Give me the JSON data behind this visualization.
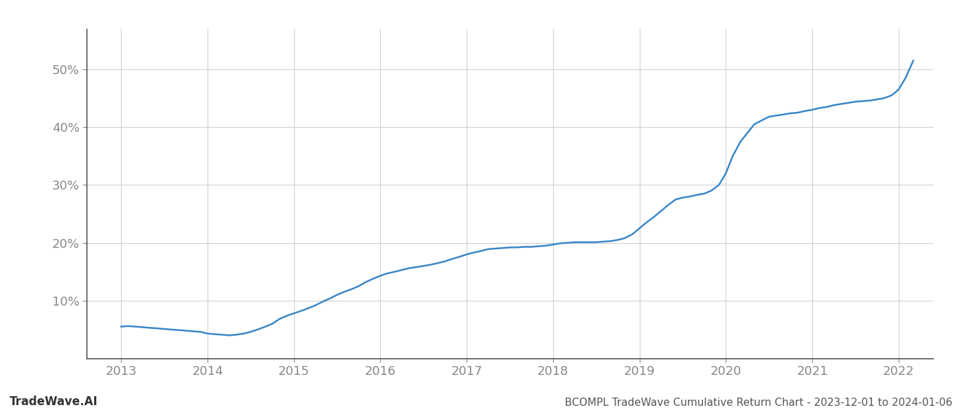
{
  "title": "BCOMPL TradeWave Cumulative Return Chart - 2023-12-01 to 2024-01-06",
  "watermark": "TradeWave.AI",
  "line_color": "#3a86c8",
  "background_color": "#ffffff",
  "grid_color": "#d0d0d0",
  "x_values": [
    2013.0,
    2013.08,
    2013.17,
    2013.25,
    2013.33,
    2013.42,
    2013.5,
    2013.58,
    2013.67,
    2013.75,
    2013.83,
    2013.92,
    2014.0,
    2014.08,
    2014.17,
    2014.25,
    2014.33,
    2014.42,
    2014.5,
    2014.58,
    2014.67,
    2014.75,
    2014.83,
    2014.92,
    2015.0,
    2015.08,
    2015.17,
    2015.25,
    2015.33,
    2015.42,
    2015.5,
    2015.58,
    2015.67,
    2015.75,
    2015.83,
    2015.92,
    2016.0,
    2016.08,
    2016.17,
    2016.25,
    2016.33,
    2016.42,
    2016.5,
    2016.58,
    2016.67,
    2016.75,
    2016.83,
    2016.92,
    2017.0,
    2017.08,
    2017.17,
    2017.25,
    2017.33,
    2017.42,
    2017.5,
    2017.58,
    2017.67,
    2017.75,
    2017.83,
    2017.92,
    2018.0,
    2018.08,
    2018.17,
    2018.25,
    2018.33,
    2018.42,
    2018.5,
    2018.58,
    2018.67,
    2018.75,
    2018.83,
    2018.92,
    2019.0,
    2019.08,
    2019.17,
    2019.25,
    2019.33,
    2019.42,
    2019.5,
    2019.58,
    2019.67,
    2019.75,
    2019.83,
    2019.92,
    2020.0,
    2020.08,
    2020.17,
    2020.25,
    2020.33,
    2020.42,
    2020.5,
    2020.58,
    2020.67,
    2020.75,
    2020.83,
    2020.92,
    2021.0,
    2021.08,
    2021.17,
    2021.25,
    2021.33,
    2021.42,
    2021.5,
    2021.58,
    2021.67,
    2021.75,
    2021.83,
    2021.92,
    2022.0,
    2022.08,
    2022.17
  ],
  "y_values": [
    5.5,
    5.6,
    5.5,
    5.4,
    5.3,
    5.2,
    5.1,
    5.0,
    4.9,
    4.8,
    4.7,
    4.6,
    4.3,
    4.2,
    4.1,
    4.0,
    4.1,
    4.3,
    4.6,
    5.0,
    5.5,
    6.0,
    6.8,
    7.4,
    7.8,
    8.2,
    8.7,
    9.2,
    9.8,
    10.4,
    11.0,
    11.5,
    12.0,
    12.5,
    13.2,
    13.8,
    14.3,
    14.7,
    15.0,
    15.3,
    15.6,
    15.8,
    16.0,
    16.2,
    16.5,
    16.8,
    17.2,
    17.6,
    18.0,
    18.3,
    18.6,
    18.9,
    19.0,
    19.1,
    19.2,
    19.2,
    19.3,
    19.3,
    19.4,
    19.5,
    19.7,
    19.9,
    20.0,
    20.1,
    20.1,
    20.1,
    20.1,
    20.2,
    20.3,
    20.5,
    20.8,
    21.5,
    22.5,
    23.5,
    24.5,
    25.5,
    26.5,
    27.5,
    27.8,
    28.0,
    28.3,
    28.5,
    29.0,
    30.0,
    32.0,
    35.0,
    37.5,
    39.0,
    40.5,
    41.2,
    41.8,
    42.0,
    42.2,
    42.4,
    42.5,
    42.8,
    43.0,
    43.3,
    43.5,
    43.8,
    44.0,
    44.2,
    44.4,
    44.5,
    44.6,
    44.8,
    45.0,
    45.5,
    46.5,
    48.5,
    51.5
  ],
  "xlim": [
    2012.6,
    2022.4
  ],
  "ylim": [
    0,
    57
  ],
  "yticks": [
    10,
    20,
    30,
    40,
    50
  ],
  "xticks": [
    2013,
    2014,
    2015,
    2016,
    2017,
    2018,
    2019,
    2020,
    2021,
    2022
  ],
  "line_width": 1.8,
  "tick_fontsize": 13,
  "title_fontsize": 11,
  "watermark_fontsize": 12
}
